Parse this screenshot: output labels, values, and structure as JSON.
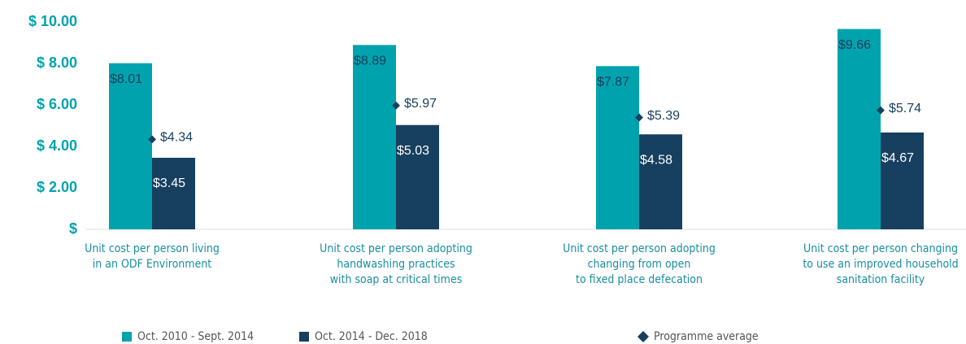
{
  "chart_data": {
    "type": "bar",
    "categories": [
      [
        "Unit cost per person living",
        "in an ODF Environment"
      ],
      [
        "Unit cost per person adopting",
        "handwashing practices",
        "with soap at critical times"
      ],
      [
        "Unit cost per person adopting",
        "changing from open",
        "to fixed place defecation"
      ],
      [
        "Unit cost per person changing",
        "to use an improved household",
        "sanitation facility"
      ]
    ],
    "series": [
      {
        "name": "Oct. 2010 - Sept. 2014",
        "color": "#00a3ad",
        "values": [
          8.01,
          8.89,
          7.87,
          9.66
        ],
        "value_labels": [
          "$8.01",
          "$8.89",
          "$7.87",
          "$9.66"
        ]
      },
      {
        "name": "Oct. 2014 - Dec. 2018",
        "color": "#173f5f",
        "values": [
          3.45,
          5.03,
          4.58,
          4.67
        ],
        "value_labels": [
          "$3.45",
          "$5.03",
          "$4.58",
          "$4.67"
        ]
      },
      {
        "name": "Programme average",
        "color": "#173f5f",
        "marker": "diamond",
        "values": [
          4.34,
          5.97,
          5.39,
          5.74
        ],
        "value_labels": [
          "$4.34",
          "$5.97",
          "$5.39",
          "$5.74"
        ]
      }
    ],
    "ylim": [
      0,
      10
    ],
    "yticks": [
      {
        "value": 0,
        "label": "$"
      },
      {
        "value": 2,
        "label": "$ 2.00"
      },
      {
        "value": 4,
        "label": "$ 4.00"
      },
      {
        "value": 6,
        "label": "$ 6.00"
      },
      {
        "value": 8,
        "label": "$ 8.00"
      },
      {
        "value": 10,
        "label": "$ 10.00"
      }
    ]
  }
}
